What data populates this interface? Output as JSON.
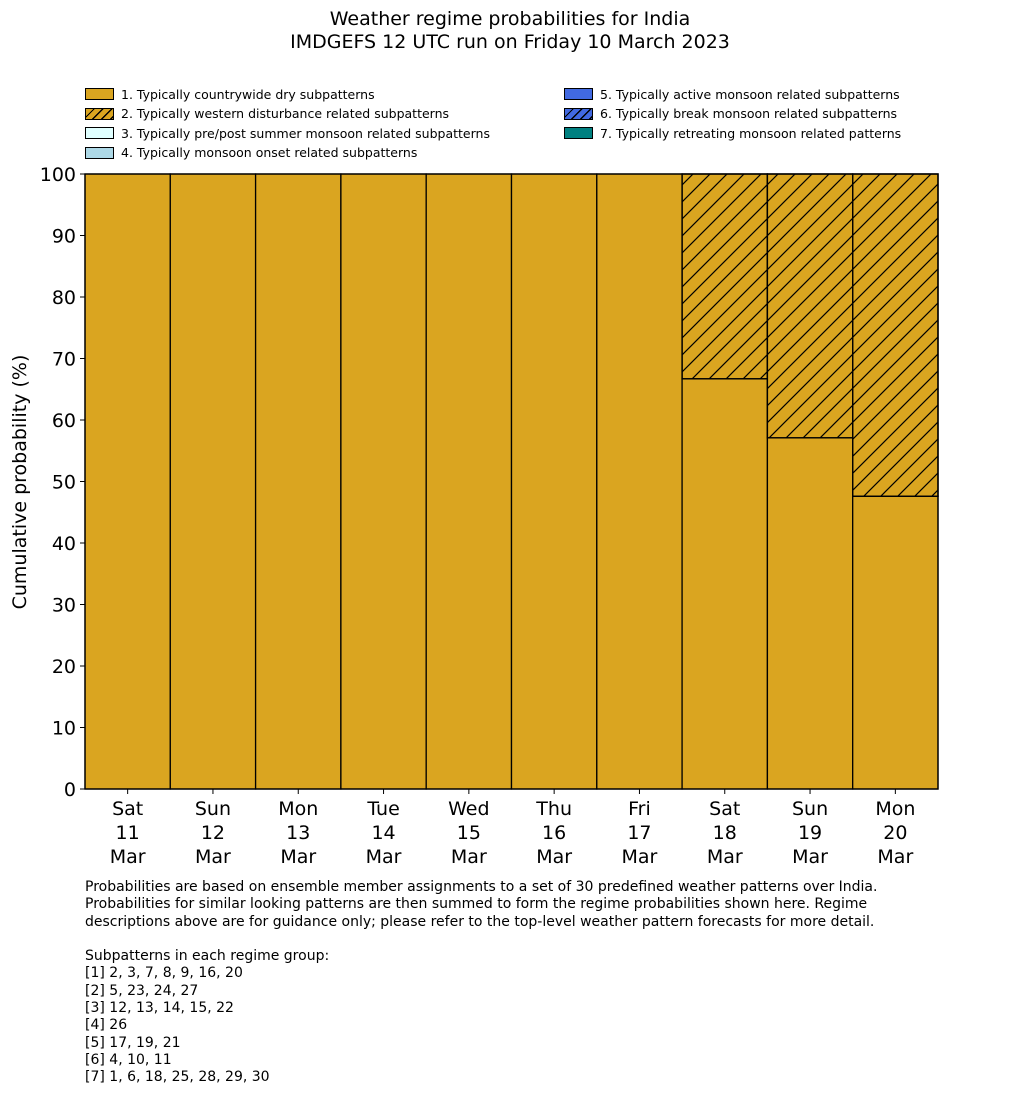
{
  "title_line1": "Weather regime probabilities for India",
  "title_line2": "IMDGEFS 12 UTC run on Friday 10 March 2023",
  "legend": [
    {
      "label": "1. Typically countrywide dry subpatterns",
      "color": "#DAA520",
      "hatch": false
    },
    {
      "label": "2. Typically western disturbance related subpatterns",
      "color": "#DAA520",
      "hatch": true
    },
    {
      "label": "3. Typically pre/post summer monsoon related subpatterns",
      "color": "#E0FFFF",
      "hatch": false
    },
    {
      "label": "4. Typically monsoon onset related subpatterns",
      "color": "#ADD8E6",
      "hatch": false
    },
    {
      "label": "5. Typically active monsoon related subpatterns",
      "color": "#4169E1",
      "hatch": false
    },
    {
      "label": "6. Typically break monsoon related subpatterns",
      "color": "#4169E1",
      "hatch": true
    },
    {
      "label": "7. Typically retreating monsoon related patterns",
      "color": "#008080",
      "hatch": false
    }
  ],
  "chart_data": {
    "type": "bar",
    "stacked": true,
    "ylabel": "Cumulative probability (%)",
    "ylim": [
      0,
      100
    ],
    "yticks": [
      0,
      10,
      20,
      30,
      40,
      50,
      60,
      70,
      80,
      90,
      100
    ],
    "categories": [
      [
        "Sat",
        "11",
        "Mar"
      ],
      [
        "Sun",
        "12",
        "Mar"
      ],
      [
        "Mon",
        "13",
        "Mar"
      ],
      [
        "Tue",
        "14",
        "Mar"
      ],
      [
        "Wed",
        "15",
        "Mar"
      ],
      [
        "Thu",
        "16",
        "Mar"
      ],
      [
        "Fri",
        "17",
        "Mar"
      ],
      [
        "Sat",
        "18",
        "Mar"
      ],
      [
        "Sun",
        "19",
        "Mar"
      ],
      [
        "Mon",
        "20",
        "Mar"
      ]
    ],
    "series": [
      {
        "name": "1. Typically countrywide dry subpatterns",
        "values": [
          100,
          100,
          100,
          100,
          100,
          100,
          100,
          66.7,
          57.1,
          47.6
        ]
      },
      {
        "name": "2. Typically western disturbance related subpatterns",
        "values": [
          0,
          0,
          0,
          0,
          0,
          0,
          0,
          33.3,
          42.9,
          52.4
        ]
      },
      {
        "name": "3. Typically pre/post summer monsoon related subpatterns",
        "values": [
          0,
          0,
          0,
          0,
          0,
          0,
          0,
          0,
          0,
          0
        ]
      },
      {
        "name": "4. Typically monsoon onset related subpatterns",
        "values": [
          0,
          0,
          0,
          0,
          0,
          0,
          0,
          0,
          0,
          0
        ]
      },
      {
        "name": "5. Typically active monsoon related subpatterns",
        "values": [
          0,
          0,
          0,
          0,
          0,
          0,
          0,
          0,
          0,
          0
        ]
      },
      {
        "name": "6. Typically break monsoon related subpatterns",
        "values": [
          0,
          0,
          0,
          0,
          0,
          0,
          0,
          0,
          0,
          0
        ]
      },
      {
        "name": "7. Typically retreating monsoon related patterns",
        "values": [
          0,
          0,
          0,
          0,
          0,
          0,
          0,
          0,
          0,
          0
        ]
      }
    ],
    "legend_position": "top",
    "grid": false
  },
  "notes": "Probabilities are based on ensemble member assignments to a set of 30 predefined weather patterns over India.\nProbabilities for similar looking patterns are then summed to form the regime probabilities shown here. Regime\ndescriptions above are for guidance only; please refer to the top-level weather pattern forecasts for more detail.\n\nSubpatterns in each regime group:\n[1] 2, 3, 7, 8, 9, 16, 20\n[2] 5, 23, 24, 27\n[3] 12, 13, 14, 15, 22\n[4] 26\n[5] 17, 19, 21\n[6] 4, 10, 11\n[7] 1, 6, 18, 25, 28, 29, 30"
}
